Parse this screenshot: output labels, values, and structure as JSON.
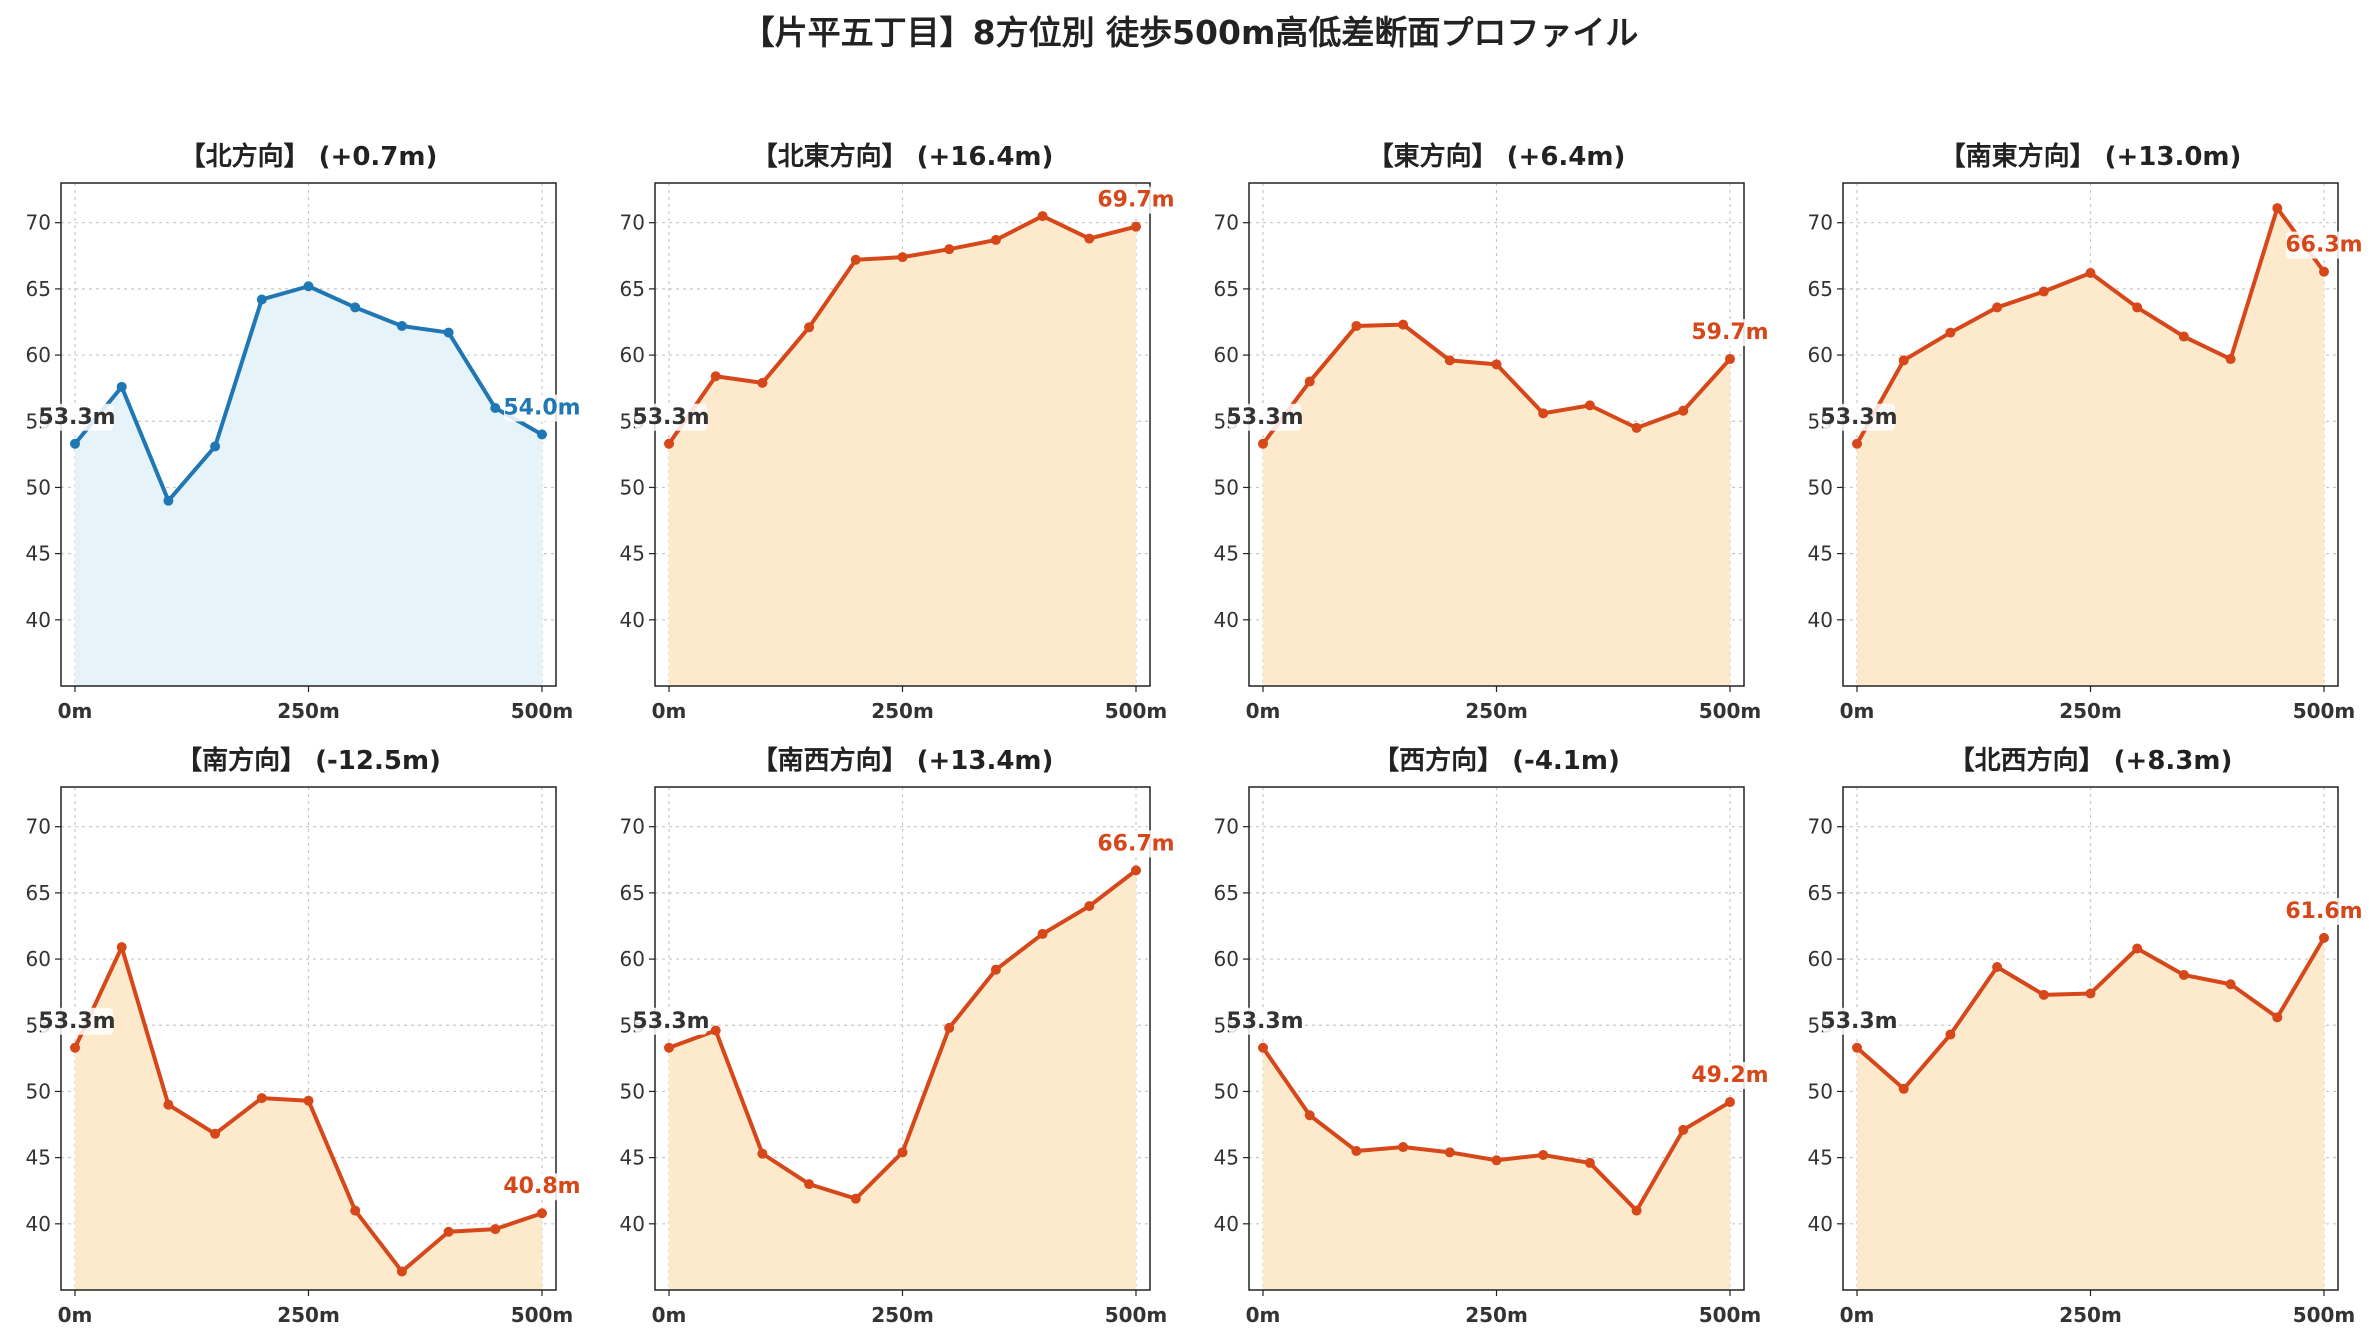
{
  "chart_data": {
    "type": "line",
    "title": "【片平五丁目】8方位別 徒歩500m高低差断面プロファイル",
    "x": [
      0,
      50,
      100,
      150,
      200,
      250,
      300,
      350,
      400,
      450,
      500
    ],
    "x_ticks": [
      0,
      250,
      500
    ],
    "x_tick_labels": [
      "0m",
      "250m",
      "500m"
    ],
    "ylim": [
      35,
      73
    ],
    "y_ticks": [
      40,
      45,
      50,
      55,
      60,
      65,
      70
    ],
    "xlim": [
      -15,
      515
    ],
    "grid": true,
    "colors": {
      "blue": "#1f77b4",
      "blue_fill": "#e6f4fa",
      "orange": "#d6471a",
      "orange_fill": "#fde9cc",
      "start_label": "#333333"
    },
    "panels": [
      {
        "title": "【北方向】 (+0.7m)",
        "color": "blue",
        "values": [
          53.3,
          57.6,
          49.0,
          53.1,
          64.2,
          65.2,
          63.6,
          62.2,
          61.7,
          56.0,
          54.0
        ],
        "start_label": "53.3m",
        "end_label": "54.0m"
      },
      {
        "title": "【北東方向】 (+16.4m)",
        "color": "orange",
        "values": [
          53.3,
          58.4,
          57.9,
          62.1,
          67.2,
          67.4,
          68.0,
          68.7,
          70.5,
          68.8,
          69.7
        ],
        "start_label": "53.3m",
        "end_label": "69.7m"
      },
      {
        "title": "【東方向】 (+6.4m)",
        "color": "orange",
        "values": [
          53.3,
          58.0,
          62.2,
          62.3,
          59.6,
          59.3,
          55.6,
          56.2,
          54.5,
          55.8,
          59.7
        ],
        "start_label": "53.3m",
        "end_label": "59.7m"
      },
      {
        "title": "【南東方向】 (+13.0m)",
        "color": "orange",
        "values": [
          53.3,
          59.6,
          61.7,
          63.6,
          64.8,
          66.2,
          63.6,
          61.4,
          59.7,
          71.1,
          66.3
        ],
        "start_label": "53.3m",
        "end_label": "66.3m"
      },
      {
        "title": "【南方向】 (-12.5m)",
        "color": "orange",
        "values": [
          53.3,
          60.9,
          49.0,
          46.8,
          49.5,
          49.3,
          41.0,
          36.4,
          39.4,
          39.6,
          40.8
        ],
        "start_label": "53.3m",
        "end_label": "40.8m"
      },
      {
        "title": "【南西方向】 (+13.4m)",
        "color": "orange",
        "values": [
          53.3,
          54.6,
          45.3,
          43.0,
          41.9,
          45.4,
          54.8,
          59.2,
          61.9,
          64.0,
          66.7
        ],
        "start_label": "53.3m",
        "end_label": "66.7m"
      },
      {
        "title": "【西方向】 (-4.1m)",
        "color": "orange",
        "values": [
          53.3,
          48.2,
          45.5,
          45.8,
          45.4,
          44.8,
          45.2,
          44.6,
          41.0,
          47.1,
          49.2
        ],
        "start_label": "53.3m",
        "end_label": "49.2m"
      },
      {
        "title": "【北西方向】 (+8.3m)",
        "color": "orange",
        "values": [
          53.3,
          50.2,
          54.3,
          59.4,
          57.3,
          57.4,
          60.8,
          58.8,
          58.1,
          55.6,
          61.6
        ],
        "start_label": "53.3m",
        "end_label": "61.6m"
      }
    ]
  }
}
